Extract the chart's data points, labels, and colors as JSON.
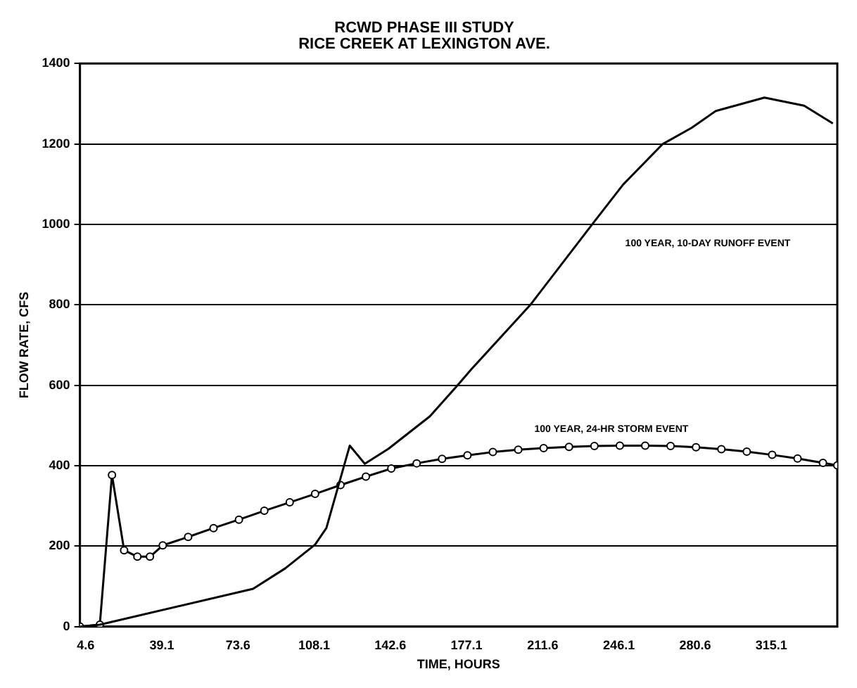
{
  "chart_data": {
    "type": "line",
    "title": [
      "RCWD PHASE III STUDY",
      "RICE CREEK AT LEXINGTON AVE."
    ],
    "xlabel": "TIME, HOURS",
    "ylabel": "FLOW RATE, CFS",
    "xlim": [
      2,
      345
    ],
    "ylim": [
      0,
      1400
    ],
    "xticks": [
      4.6,
      39.1,
      73.6,
      108.1,
      142.6,
      177.1,
      211.6,
      246.1,
      280.6,
      315.1
    ],
    "yticks": [
      0,
      200,
      400,
      600,
      800,
      1000,
      1200,
      1400
    ],
    "grid": "y",
    "legend": false,
    "series": [
      {
        "color": "#000000",
        "marker": "none",
        "x": [
          2,
          11,
          80.4,
          95,
          108.5,
          113.6,
          124.2,
          131,
          141.7,
          160.5,
          173,
          179.3,
          206,
          234,
          248,
          266,
          279,
          290,
          312,
          330,
          343
        ],
        "values": [
          0,
          5,
          94,
          145,
          204,
          245,
          450,
          405,
          442,
          523,
          600,
          640,
          800,
          1000,
          1099,
          1200,
          1240,
          1282,
          1315,
          1295,
          1251
        ]
      },
      {
        "color": "#000000",
        "marker": "circle",
        "x": [
          2,
          11,
          16.5,
          22,
          28,
          33.7,
          39.5,
          51,
          62.5,
          74,
          85.5,
          97,
          108.5,
          120,
          131.5,
          143,
          154.5,
          166,
          177.5,
          189,
          200.5,
          212,
          223.5,
          235,
          246.5,
          258,
          269.5,
          281,
          292.5,
          304,
          315.5,
          327,
          338.5,
          345
        ],
        "values": [
          0,
          5,
          377,
          190,
          174,
          174,
          202,
          223,
          245,
          266,
          288,
          309,
          330,
          352,
          373,
          393,
          406,
          417,
          426,
          434,
          440,
          444,
          447,
          449,
          450,
          450,
          449,
          446,
          441,
          435,
          427,
          418,
          407,
          401
        ]
      }
    ],
    "annotations": [
      "100 YEAR, 10-DAY RUNOFF EVENT",
      "100 YEAR, 24-HR STORM EVENT"
    ]
  }
}
